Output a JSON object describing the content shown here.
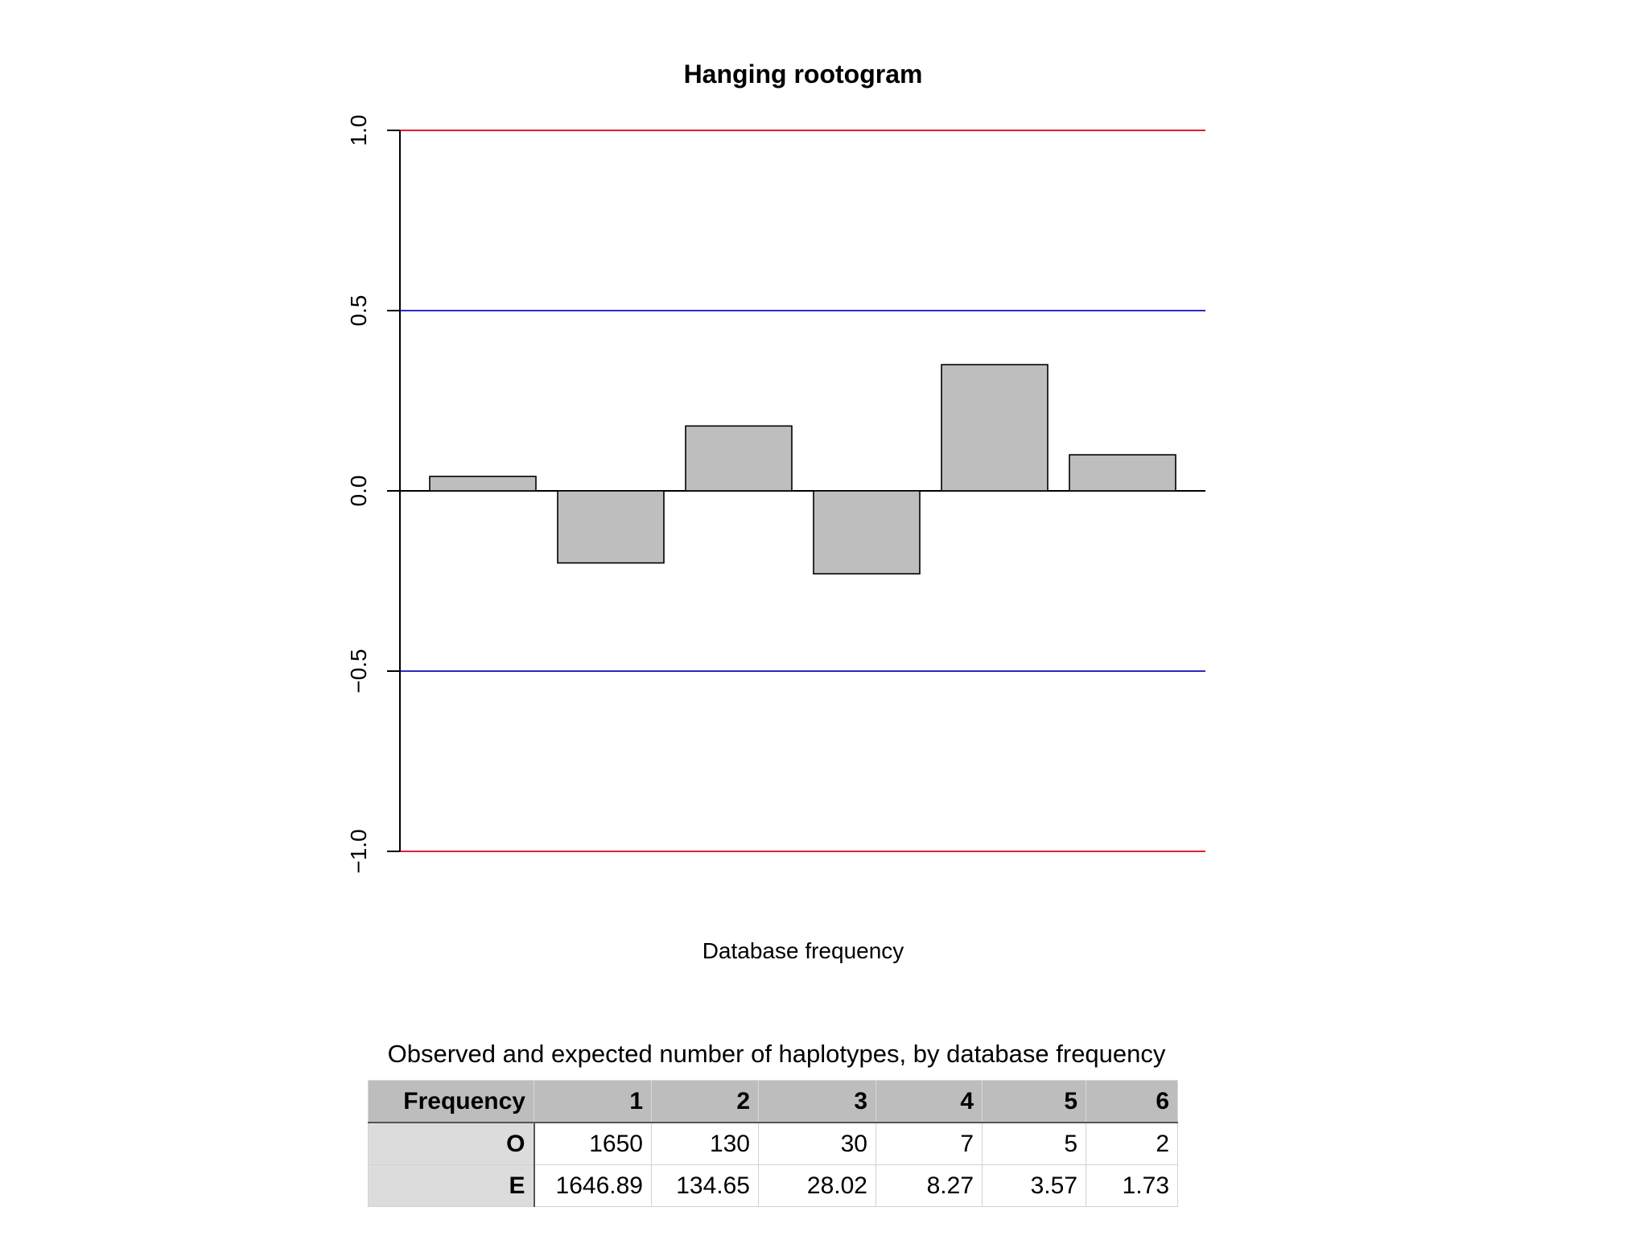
{
  "chart_data": {
    "type": "bar",
    "title": "Hanging rootogram",
    "xlabel": "Database frequency",
    "ylabel": "",
    "categories": [
      "1",
      "2",
      "3",
      "4",
      "5",
      "6"
    ],
    "values": [
      0.04,
      -0.2,
      0.18,
      -0.23,
      0.35,
      0.1
    ],
    "ylim": [
      -1.0,
      1.0
    ],
    "yticks": [
      -1.0,
      -0.5,
      0.0,
      0.5,
      1.0
    ],
    "ytick_labels": [
      "−1.0",
      "−0.5",
      "0.0",
      "0.5",
      "1.0"
    ],
    "reference_lines": [
      {
        "y": 1.0,
        "color": "#e0203a"
      },
      {
        "y": 0.5,
        "color": "#2b2bc0"
      },
      {
        "y": 0.0,
        "color": "#000000"
      },
      {
        "y": -0.5,
        "color": "#2b2bc0"
      },
      {
        "y": -1.0,
        "color": "#e0203a"
      }
    ],
    "bar_fill": "#bebebe",
    "bar_stroke": "#000000",
    "grid": false
  },
  "table": {
    "caption": "Observed and expected number of haplotypes, by database frequency",
    "header": [
      "Frequency",
      "1",
      "2",
      "3",
      "4",
      "5",
      "6"
    ],
    "rows": [
      [
        "O",
        "1650",
        "130",
        "30",
        "7",
        "5",
        "2"
      ],
      [
        "E",
        "1646.89",
        "134.65",
        "28.02",
        "8.27",
        "3.57",
        "1.73"
      ]
    ]
  }
}
